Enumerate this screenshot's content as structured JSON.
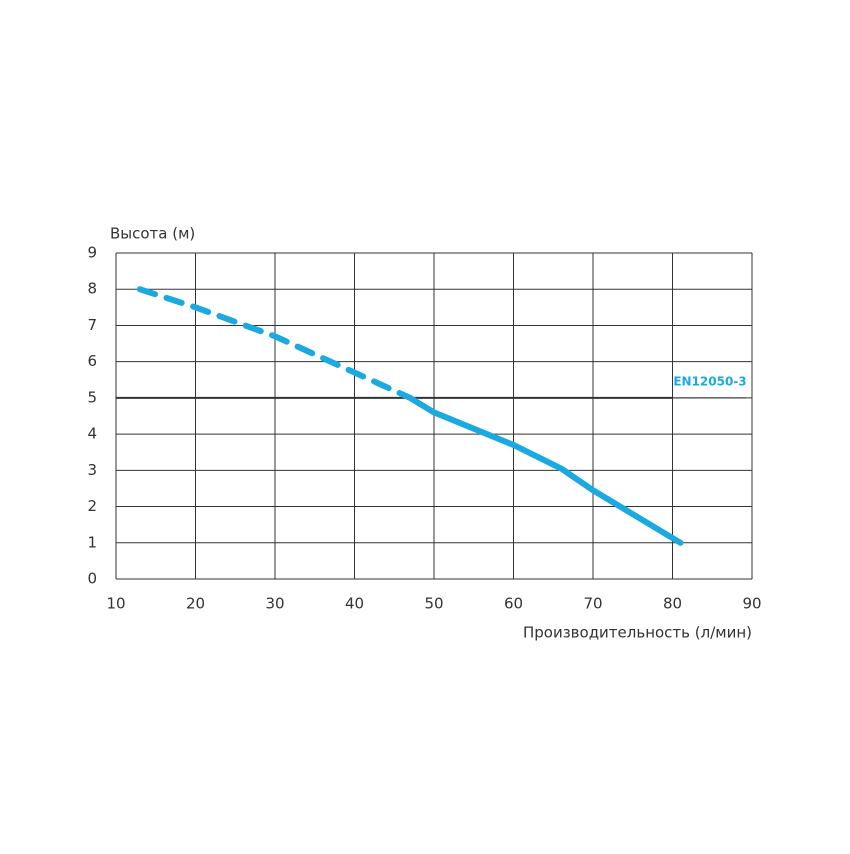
{
  "chart_data": {
    "type": "line",
    "ylabel": "Высота (м)",
    "xlabel": "Производительность (л/мин)",
    "xlim": [
      10,
      90
    ],
    "xticks": [
      10,
      20,
      30,
      40,
      50,
      60,
      70,
      80,
      90
    ],
    "ylim": [
      0,
      9
    ],
    "yticks": [
      0,
      1,
      2,
      3,
      4,
      5,
      6,
      7,
      8,
      9
    ],
    "grid": true,
    "series": [
      {
        "color": "#1aa9e0",
        "dashed": true,
        "x": [
          13,
          20,
          30,
          40,
          47
        ],
        "y": [
          8,
          7.5,
          6.7,
          5.7,
          5
        ]
      },
      {
        "color": "#1aa9e0",
        "dashed": false,
        "x": [
          47,
          50,
          60,
          66,
          70,
          81
        ],
        "y": [
          5,
          4.6,
          3.7,
          3.05,
          2.45,
          1
        ]
      }
    ],
    "reference_line": {
      "label": "EN12050-3",
      "y": 5,
      "x_end": 80,
      "color": "#333333",
      "label_color": "#1aa9e0"
    }
  }
}
